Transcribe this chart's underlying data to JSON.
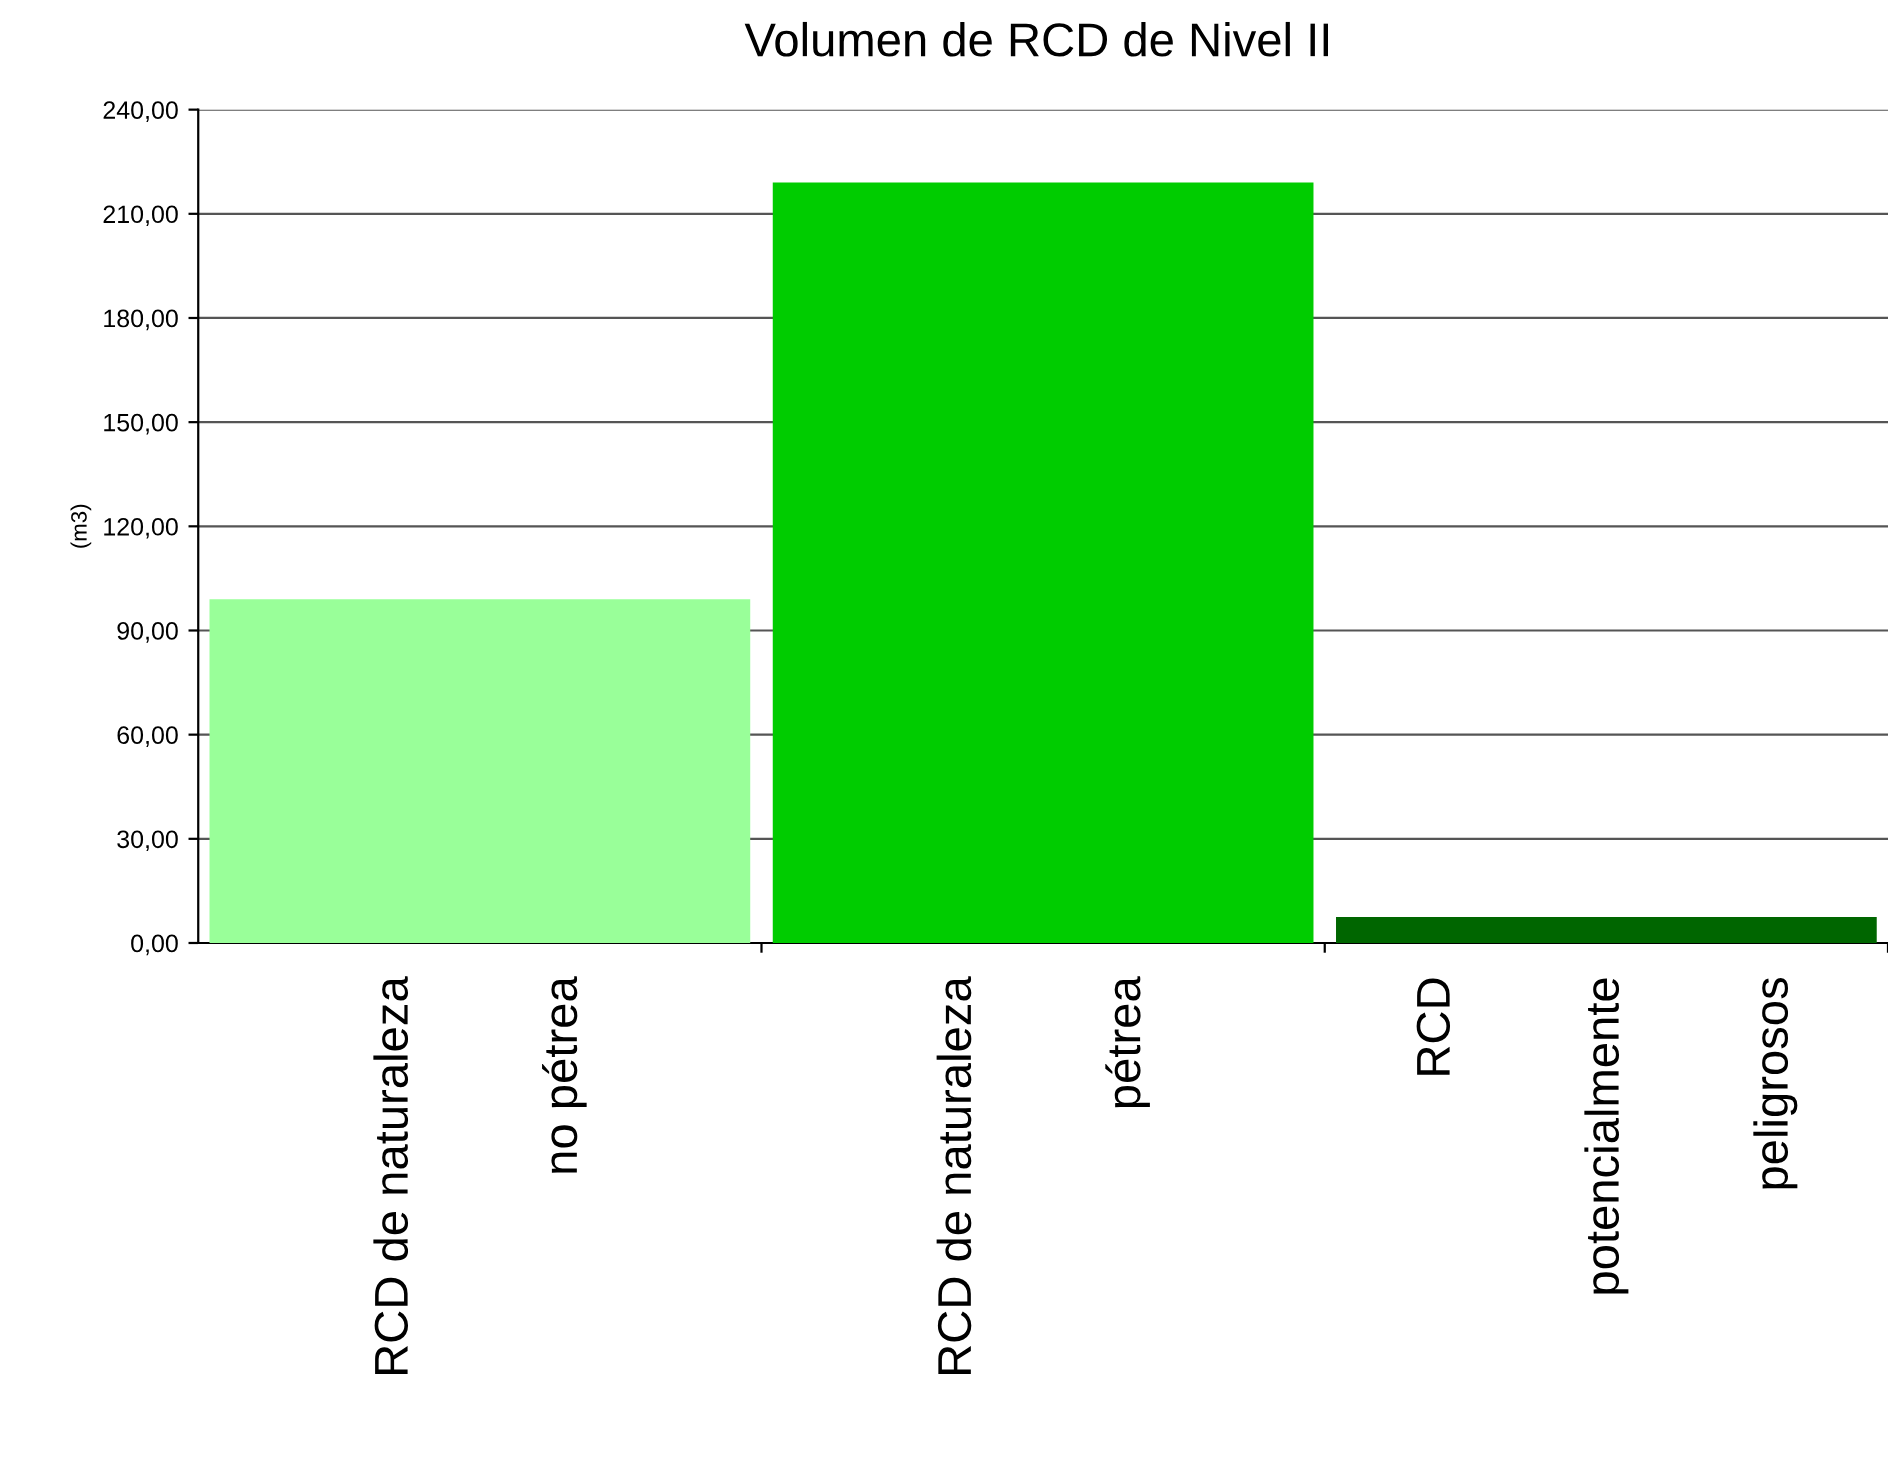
{
  "chart_data": {
    "type": "bar",
    "title": "Volumen de RCD de Nivel II",
    "ylabel": "(m3)",
    "categories": [
      "RCD de naturaleza\nno pétrea",
      "RCD de naturaleza\npétrea",
      "RCD\npotencialmente\npeligrosos"
    ],
    "values": [
      99,
      219,
      7.5
    ],
    "colors": [
      "#99ff99",
      "#00cc00",
      "#006600"
    ],
    "ylim": [
      0,
      240
    ],
    "yticks": [
      {
        "value": 0,
        "label": "0,00"
      },
      {
        "value": 30,
        "label": "30,00"
      },
      {
        "value": 60,
        "label": "60,00"
      },
      {
        "value": 90,
        "label": "90,00"
      },
      {
        "value": 120,
        "label": "120,00"
      },
      {
        "value": 150,
        "label": "150,00"
      },
      {
        "value": 180,
        "label": "180,00"
      },
      {
        "value": 210,
        "label": "210,00"
      },
      {
        "value": 240,
        "label": "240,00"
      }
    ],
    "grid": "y"
  }
}
